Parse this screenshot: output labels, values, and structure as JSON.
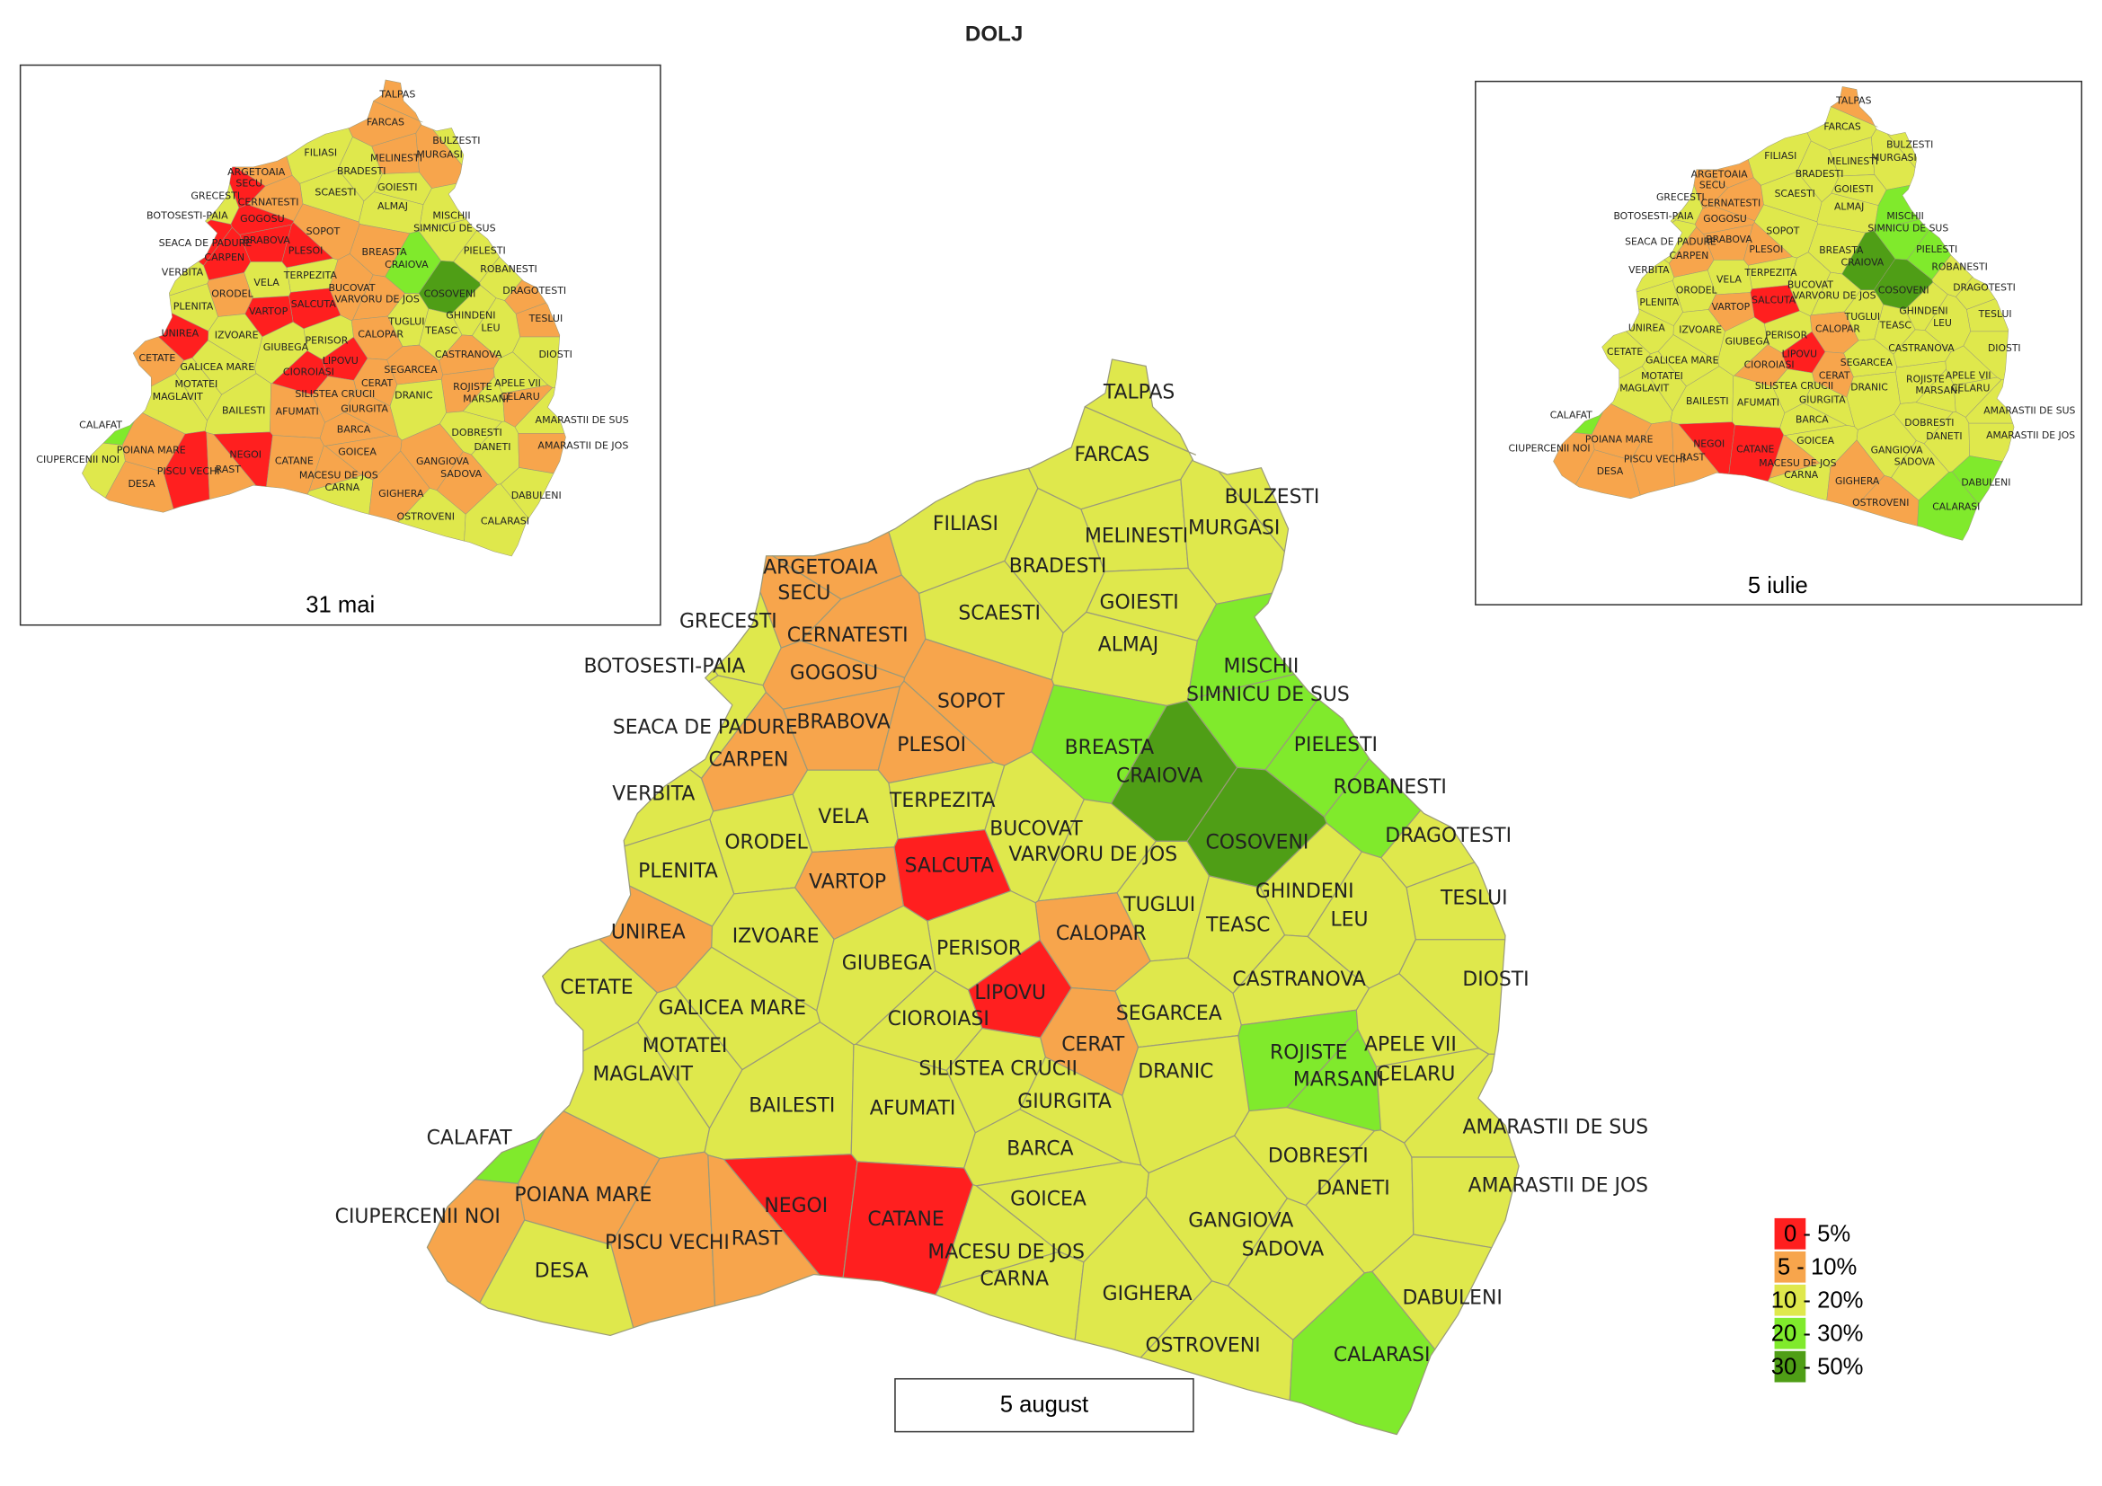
{
  "title": "DOLJ",
  "maps": [
    {
      "caption": "31 mai"
    },
    {
      "caption": "5 iulie"
    },
    {
      "caption": "5 august"
    }
  ],
  "legend": [
    {
      "label": "0 - 5%",
      "color": "#ff1f1f"
    },
    {
      "label": "5 - 10%",
      "color": "#f7a54c"
    },
    {
      "label": "10 - 20%",
      "color": "#dfe84c"
    },
    {
      "label": "20 - 30%",
      "color": "#80ea2c"
    },
    {
      "label": "30 - 50%",
      "color": "#4f9e16"
    }
  ],
  "communes": [
    {
      "name": "TALPAS",
      "classes": [
        1,
        1,
        2
      ]
    },
    {
      "name": "FARCAS",
      "classes": [
        1,
        2,
        2
      ]
    },
    {
      "name": "BULZESTI",
      "classes": [
        2,
        2,
        2
      ]
    },
    {
      "name": "MELINESTI",
      "classes": [
        1,
        2,
        2
      ]
    },
    {
      "name": "MURGASI",
      "classes": [
        1,
        2,
        2
      ]
    },
    {
      "name": "FILIASI",
      "classes": [
        2,
        2,
        2
      ]
    },
    {
      "name": "BRADESTI",
      "classes": [
        2,
        2,
        2
      ]
    },
    {
      "name": "GOIESTI",
      "classes": [
        2,
        2,
        2
      ]
    },
    {
      "name": "ARGETOAIA",
      "classes": [
        1,
        1,
        1
      ]
    },
    {
      "name": "SECU",
      "classes": [
        0,
        1,
        1
      ]
    },
    {
      "name": "GRECESTI",
      "classes": [
        2,
        2,
        2
      ]
    },
    {
      "name": "CERNATESTI",
      "classes": [
        1,
        1,
        1
      ]
    },
    {
      "name": "SCAESTI",
      "classes": [
        2,
        2,
        2
      ]
    },
    {
      "name": "ALMAJ",
      "classes": [
        2,
        2,
        2
      ]
    },
    {
      "name": "BOTOSESTI-PAIA",
      "classes": [
        2,
        2,
        2
      ]
    },
    {
      "name": "GOGOSU",
      "classes": [
        0,
        1,
        1
      ]
    },
    {
      "name": "MISCHII",
      "classes": [
        2,
        3,
        3
      ]
    },
    {
      "name": "SIMNICU DE SUS",
      "classes": [
        2,
        3,
        3
      ]
    },
    {
      "name": "SOPOT",
      "classes": [
        1,
        2,
        1
      ]
    },
    {
      "name": "SEACA DE PADURE",
      "classes": [
        0,
        2,
        2
      ]
    },
    {
      "name": "BRABOVA",
      "classes": [
        0,
        1,
        1
      ]
    },
    {
      "name": "PLESOI",
      "classes": [
        0,
        1,
        1
      ]
    },
    {
      "name": "BREASTA",
      "classes": [
        1,
        2,
        3
      ]
    },
    {
      "name": "PIELESTI",
      "classes": [
        2,
        3,
        3
      ]
    },
    {
      "name": "CRAIOVA",
      "classes": [
        3,
        4,
        4
      ]
    },
    {
      "name": "CARPEN",
      "classes": [
        0,
        1,
        1
      ]
    },
    {
      "name": "ROBANESTI",
      "classes": [
        2,
        2,
        3
      ]
    },
    {
      "name": "VERBITA",
      "classes": [
        2,
        2,
        2
      ]
    },
    {
      "name": "TERPEZITA",
      "classes": [
        2,
        2,
        2
      ]
    },
    {
      "name": "VELA",
      "classes": [
        2,
        2,
        2
      ]
    },
    {
      "name": "BUCOVAT",
      "classes": [
        1,
        2,
        2
      ]
    },
    {
      "name": "ORODEL",
      "classes": [
        1,
        2,
        2
      ]
    },
    {
      "name": "COSOVENI",
      "classes": [
        4,
        4,
        4
      ]
    },
    {
      "name": "DRAGOTESTI",
      "classes": [
        1,
        2,
        2
      ]
    },
    {
      "name": "SALCUTA",
      "classes": [
        0,
        0,
        0
      ]
    },
    {
      "name": "VARVORU DE JOS",
      "classes": [
        1,
        2,
        2
      ]
    },
    {
      "name": "PLENITA",
      "classes": [
        2,
        2,
        2
      ]
    },
    {
      "name": "VARTOP",
      "classes": [
        0,
        1,
        1
      ]
    },
    {
      "name": "GHINDENI",
      "classes": [
        2,
        2,
        2
      ]
    },
    {
      "name": "TESLUI",
      "classes": [
        1,
        2,
        2
      ]
    },
    {
      "name": "TUGLUI",
      "classes": [
        2,
        2,
        2
      ]
    },
    {
      "name": "LEU",
      "classes": [
        2,
        2,
        2
      ]
    },
    {
      "name": "TEASC",
      "classes": [
        2,
        2,
        2
      ]
    },
    {
      "name": "UNIREA",
      "classes": [
        0,
        2,
        1
      ]
    },
    {
      "name": "CALOPAR",
      "classes": [
        1,
        1,
        1
      ]
    },
    {
      "name": "IZVOARE",
      "classes": [
        2,
        2,
        2
      ]
    },
    {
      "name": "PERISOR",
      "classes": [
        2,
        2,
        2
      ]
    },
    {
      "name": "GIUBEGA",
      "classes": [
        2,
        2,
        2
      ]
    },
    {
      "name": "CETATE",
      "classes": [
        1,
        2,
        2
      ]
    },
    {
      "name": "CASTRANOVA",
      "classes": [
        1,
        2,
        2
      ]
    },
    {
      "name": "DIOSTI",
      "classes": [
        2,
        2,
        2
      ]
    },
    {
      "name": "LIPOVU",
      "classes": [
        0,
        0,
        0
      ]
    },
    {
      "name": "GALICEA MARE",
      "classes": [
        2,
        2,
        2
      ]
    },
    {
      "name": "CIOROIASI",
      "classes": [
        0,
        1,
        2
      ]
    },
    {
      "name": "SEGARCEA",
      "classes": [
        1,
        2,
        2
      ]
    },
    {
      "name": "CERAT",
      "classes": [
        1,
        1,
        1
      ]
    },
    {
      "name": "MOTATEI",
      "classes": [
        2,
        2,
        2
      ]
    },
    {
      "name": "ROJISTE",
      "classes": [
        1,
        2,
        3
      ]
    },
    {
      "name": "APELE VII",
      "classes": [
        2,
        2,
        2
      ]
    },
    {
      "name": "MAGLAVIT",
      "classes": [
        2,
        2,
        2
      ]
    },
    {
      "name": "SILISTEA CRUCII",
      "classes": [
        1,
        2,
        2
      ]
    },
    {
      "name": "DRANIC",
      "classes": [
        2,
        2,
        2
      ]
    },
    {
      "name": "MARSANI",
      "classes": [
        2,
        2,
        3
      ]
    },
    {
      "name": "CELARU",
      "classes": [
        1,
        2,
        2
      ]
    },
    {
      "name": "BAILESTI",
      "classes": [
        2,
        2,
        2
      ]
    },
    {
      "name": "AFUMATI",
      "classes": [
        1,
        2,
        2
      ]
    },
    {
      "name": "GIURGITA",
      "classes": [
        1,
        2,
        2
      ]
    },
    {
      "name": "CALAFAT",
      "classes": [
        3,
        3,
        3
      ]
    },
    {
      "name": "AMARASTII DE SUS",
      "classes": [
        2,
        2,
        2
      ]
    },
    {
      "name": "BARCA",
      "classes": [
        1,
        2,
        2
      ]
    },
    {
      "name": "DOBRESTI",
      "classes": [
        2,
        2,
        2
      ]
    },
    {
      "name": "POIANA MARE",
      "classes": [
        1,
        1,
        1
      ]
    },
    {
      "name": "DANETI",
      "classes": [
        2,
        2,
        2
      ]
    },
    {
      "name": "AMARASTII DE JOS",
      "classes": [
        1,
        2,
        2
      ]
    },
    {
      "name": "GOICEA",
      "classes": [
        1,
        2,
        2
      ]
    },
    {
      "name": "NEGOI",
      "classes": [
        0,
        0,
        0
      ]
    },
    {
      "name": "CIUPERCENII NOI",
      "classes": [
        2,
        1,
        1
      ]
    },
    {
      "name": "GANGIOVA",
      "classes": [
        1,
        2,
        2
      ]
    },
    {
      "name": "CATANE",
      "classes": [
        1,
        0,
        0
      ]
    },
    {
      "name": "PISCU VECHI",
      "classes": [
        0,
        1,
        1
      ]
    },
    {
      "name": "RAST",
      "classes": [
        1,
        1,
        1
      ]
    },
    {
      "name": "MACESU DE JOS",
      "classes": [
        1,
        1,
        2
      ]
    },
    {
      "name": "SADOVA",
      "classes": [
        1,
        2,
        2
      ]
    },
    {
      "name": "DESA",
      "classes": [
        1,
        1,
        2
      ]
    },
    {
      "name": "CARNA",
      "classes": [
        2,
        2,
        2
      ]
    },
    {
      "name": "GIGHERA",
      "classes": [
        1,
        1,
        2
      ]
    },
    {
      "name": "DABULENI",
      "classes": [
        2,
        3,
        2
      ]
    },
    {
      "name": "OSTROVENI",
      "classes": [
        2,
        1,
        2
      ]
    },
    {
      "name": "CALARASI",
      "classes": [
        2,
        3,
        3
      ]
    }
  ]
}
